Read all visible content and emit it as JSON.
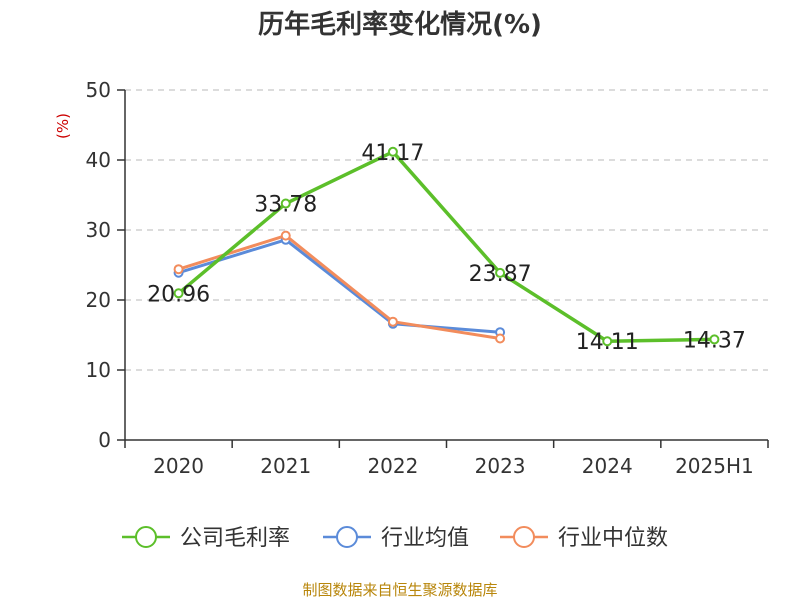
{
  "chart_data": {
    "type": "line",
    "title": "历年毛利率变化情况(%)",
    "ylabel": "(%)",
    "xlabel": "",
    "categories": [
      "2020",
      "2021",
      "2022",
      "2023",
      "2024",
      "2025H1"
    ],
    "ylim": [
      0,
      50
    ],
    "yticks": [
      0,
      10,
      20,
      30,
      40,
      50
    ],
    "grid": "horizontal dashed",
    "legend_position": "bottom",
    "series": [
      {
        "name": "公司毛利率",
        "color": "#5cbf2a",
        "values": [
          20.96,
          33.78,
          41.17,
          23.87,
          14.11,
          14.37
        ],
        "labels": [
          "20.96",
          "33.78",
          "41.17",
          "23.87",
          "14.11",
          "14.37"
        ]
      },
      {
        "name": "行业均值",
        "color": "#5b8bd9",
        "values": [
          23.9,
          28.6,
          16.6,
          15.4,
          null,
          null
        ]
      },
      {
        "name": "行业中位数",
        "color": "#f28c5c",
        "values": [
          24.4,
          29.2,
          16.9,
          14.5,
          null,
          null
        ]
      }
    ]
  },
  "source_text": "制图数据来自恒生聚源数据库"
}
